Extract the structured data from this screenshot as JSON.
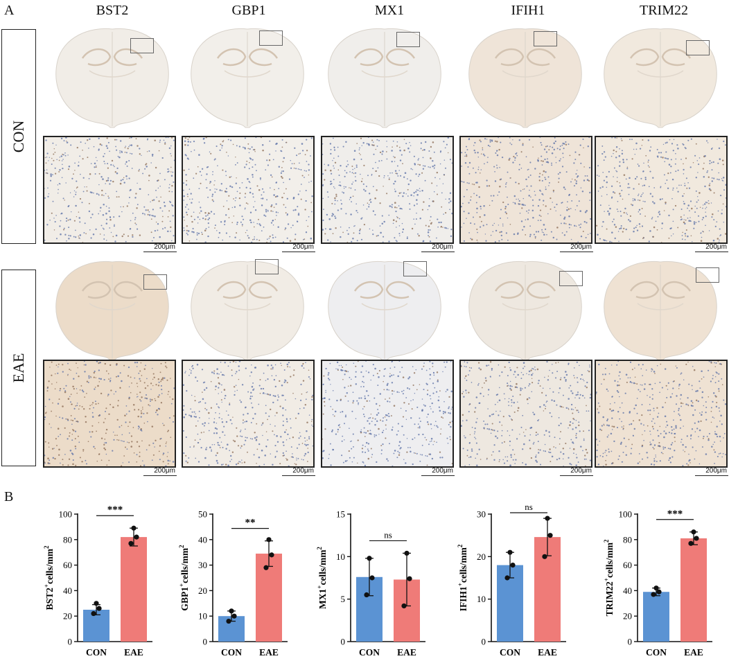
{
  "figure": {
    "panel_a_label": "A",
    "panel_b_label": "B",
    "genes": [
      "BST2",
      "GBP1",
      "MX1",
      "IFIH1",
      "TRIM22"
    ],
    "rows": [
      {
        "label": "CON",
        "tint": [
          "#f1ede7",
          "#f2efea",
          "#f0eeeb",
          "#efe4d8",
          "#f1e9de"
        ]
      },
      {
        "label": "EAE",
        "tint": [
          "#ecdcc9",
          "#f1ece5",
          "#eeeef0",
          "#eee8e0",
          "#efe2d3"
        ]
      }
    ],
    "scale_bar_label": "200μm",
    "colors": {
      "con": "#5b93d3",
      "eae": "#ef7b78",
      "stain_dot": "#8a6a52",
      "nuclei": "#5a6fa6"
    }
  },
  "chart_data": [
    {
      "type": "bar",
      "categories": [
        "CON",
        "EAE"
      ],
      "values": [
        25,
        82
      ],
      "points": [
        [
          22,
          26,
          30
        ],
        [
          77,
          82,
          89
        ]
      ],
      "error": [
        4,
        7
      ],
      "ylabel": "BST2+cells/mm2",
      "ylabel_main": "BST2",
      "ylabel_sup": "+",
      "ylabel_rest": "cells/mm",
      "ylabel_sup2": "2",
      "ylim": [
        0,
        100
      ],
      "ticks": [
        0,
        20,
        40,
        60,
        80,
        100
      ],
      "significance": "***"
    },
    {
      "type": "bar",
      "categories": [
        "CON",
        "EAE"
      ],
      "values": [
        10,
        34.5
      ],
      "points": [
        [
          8,
          10,
          12
        ],
        [
          29,
          34,
          40
        ]
      ],
      "error": [
        2,
        5
      ],
      "ylabel": "GBP1+cells/mm2",
      "ylabel_main": "GBP1",
      "ylabel_sup": "+",
      "ylabel_rest": "cells/mm",
      "ylabel_sup2": "2",
      "ylim": [
        0,
        50
      ],
      "ticks": [
        0,
        10,
        20,
        30,
        40,
        50
      ],
      "significance": "**"
    },
    {
      "type": "bar",
      "categories": [
        "CON",
        "EAE"
      ],
      "values": [
        7.6,
        7.3
      ],
      "points": [
        [
          5.5,
          7.5,
          9.8
        ],
        [
          4.2,
          7.4,
          10.4
        ]
      ],
      "error": [
        2.2,
        3.1
      ],
      "ylabel": "MX1+cells/mm2",
      "ylabel_main": "MX1",
      "ylabel_sup": "+",
      "ylabel_rest": "cells/mm",
      "ylabel_sup2": "2",
      "ylim": [
        0,
        15
      ],
      "ticks": [
        0,
        5,
        10,
        15
      ],
      "significance": "ns"
    },
    {
      "type": "bar",
      "categories": [
        "CON",
        "EAE"
      ],
      "values": [
        18,
        24.6
      ],
      "points": [
        [
          15,
          18,
          21
        ],
        [
          20,
          25,
          29
        ]
      ],
      "error": [
        3,
        4.4
      ],
      "ylabel": "IFIH1+cells/mm2",
      "ylabel_main": "IFIH1",
      "ylabel_sup": "+",
      "ylabel_rest": "cells/mm",
      "ylabel_sup2": "2",
      "ylim": [
        0,
        30
      ],
      "ticks": [
        0,
        10,
        20,
        30
      ],
      "significance": "ns"
    },
    {
      "type": "bar",
      "categories": [
        "CON",
        "EAE"
      ],
      "values": [
        39,
        81
      ],
      "points": [
        [
          37,
          39,
          42
        ],
        [
          77,
          81,
          86
        ]
      ],
      "error": [
        3,
        5
      ],
      "ylabel": "TRIM22+cells/mm2",
      "ylabel_main": "TRIM22",
      "ylabel_sup": "+",
      "ylabel_rest": "cells/mm",
      "ylabel_sup2": "2",
      "ylim": [
        0,
        100
      ],
      "ticks": [
        0,
        20,
        40,
        60,
        80,
        100
      ],
      "significance": "***"
    }
  ]
}
